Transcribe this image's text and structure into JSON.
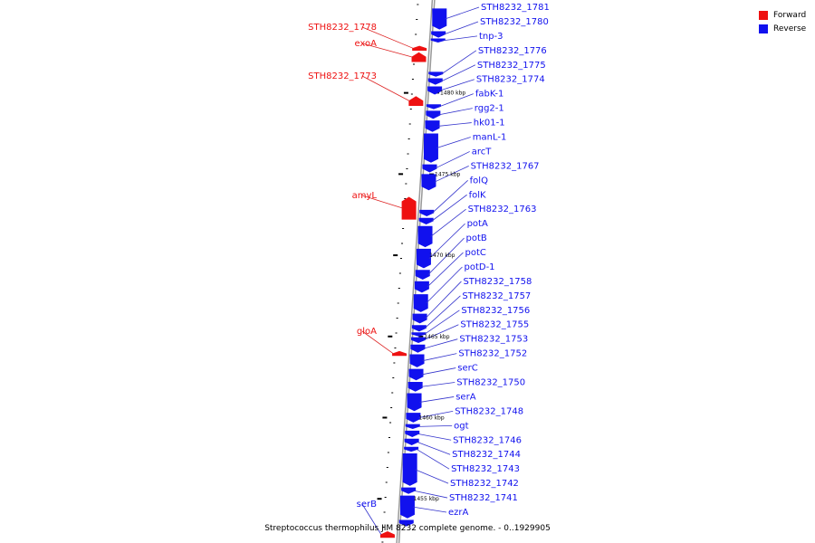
{
  "caption": "Streptococcus thermophilus JIM 8232 complete genome. - 0..1929905",
  "legend": [
    {
      "label": "Forward",
      "color": "#ee1111"
    },
    {
      "label": "Reverse",
      "color": "#1111ee"
    }
  ],
  "colors": {
    "forward": "#ee1111",
    "reverse": "#1111ee",
    "backbone": "#999999",
    "callout": "#3333cc",
    "callout_forward": "#dd2222"
  },
  "ruler": [
    {
      "label": "1480 kbp",
      "pos": 1480
    },
    {
      "label": "1475 kbp",
      "pos": 1475
    },
    {
      "label": "1470 kbp",
      "pos": 1470
    },
    {
      "label": "1465 kbp",
      "pos": 1465
    },
    {
      "label": "1460 kbp",
      "pos": 1460
    },
    {
      "label": "1455 kbp",
      "pos": 1455
    }
  ],
  "reverse_genes": [
    {
      "label": "STH8232_1781",
      "start": 1483.9,
      "end": 1485.2
    },
    {
      "label": "STH8232_1780",
      "start": 1483.4,
      "end": 1483.8
    },
    {
      "label": "tnp-3",
      "start": 1483.1,
      "end": 1483.35
    },
    {
      "label": "STH8232_1776",
      "start": 1481.0,
      "end": 1481.3
    },
    {
      "label": "STH8232_1775",
      "start": 1480.5,
      "end": 1480.9
    },
    {
      "label": "STH8232_1774",
      "start": 1479.9,
      "end": 1480.4
    },
    {
      "label": "fabK-1",
      "start": 1479.0,
      "end": 1479.3
    },
    {
      "label": "rgg2-1",
      "start": 1478.4,
      "end": 1478.9
    },
    {
      "label": "hk01-1",
      "start": 1477.6,
      "end": 1478.3
    },
    {
      "label": "manL-1",
      "start": 1475.7,
      "end": 1477.5
    },
    {
      "label": "arcT",
      "start": 1475.1,
      "end": 1475.6
    },
    {
      "label": "STH8232_1767",
      "start": 1474.0,
      "end": 1475.0
    },
    {
      "label": "folQ",
      "start": 1472.4,
      "end": 1472.8
    },
    {
      "label": "folK",
      "start": 1471.9,
      "end": 1472.3
    },
    {
      "label": "STH8232_1763",
      "start": 1470.5,
      "end": 1471.8
    },
    {
      "label": "potA",
      "start": 1469.2,
      "end": 1470.4
    },
    {
      "label": "potB",
      "start": 1468.5,
      "end": 1469.1
    },
    {
      "label": "potC",
      "start": 1467.7,
      "end": 1468.4
    },
    {
      "label": "potD-1",
      "start": 1466.5,
      "end": 1467.6
    },
    {
      "label": "STH8232_1758",
      "start": 1465.8,
      "end": 1466.4
    },
    {
      "label": "STH8232_1757",
      "start": 1465.3,
      "end": 1465.7
    },
    {
      "label": "STH8232_1756",
      "start": 1465.0,
      "end": 1465.25
    },
    {
      "label": "STH8232_1755",
      "start": 1464.6,
      "end": 1464.95
    },
    {
      "label": "STH8232_1753",
      "start": 1464.0,
      "end": 1464.5
    },
    {
      "label": "STH8232_1752",
      "start": 1463.1,
      "end": 1463.9
    },
    {
      "label": "serC",
      "start": 1462.3,
      "end": 1463.0
    },
    {
      "label": "STH8232_1750",
      "start": 1461.6,
      "end": 1462.2
    },
    {
      "label": "serA",
      "start": 1460.4,
      "end": 1461.5
    },
    {
      "label": "STH8232_1748",
      "start": 1459.7,
      "end": 1460.3
    },
    {
      "label": "ogt",
      "start": 1459.3,
      "end": 1459.6
    },
    {
      "label": "STH8232_1746",
      "start": 1458.8,
      "end": 1459.2
    },
    {
      "label": "STH8232_1744",
      "start": 1458.3,
      "end": 1458.7
    },
    {
      "label": "STH8232_1743",
      "start": 1457.9,
      "end": 1458.2
    },
    {
      "label": "STH8232_1742",
      "start": 1455.8,
      "end": 1457.8
    },
    {
      "label": "STH8232_1741",
      "start": 1455.3,
      "end": 1455.7
    },
    {
      "label": "ezrA",
      "start": 1453.8,
      "end": 1455.2
    },
    {
      "label": "",
      "start": 1453.3,
      "end": 1453.7
    }
  ],
  "forward_genes": [
    {
      "label": "STH8232_1778",
      "start": 1482.6,
      "end": 1482.9
    },
    {
      "label": "exoA",
      "start": 1481.9,
      "end": 1482.5
    },
    {
      "label": "STH8232_1773",
      "start": 1479.2,
      "end": 1479.8
    },
    {
      "label": "amyL",
      "start": 1472.2,
      "end": 1473.6
    },
    {
      "label": "gloA",
      "start": 1463.8,
      "end": 1464.1
    },
    {
      "label": "serB",
      "start": 1452.6,
      "end": 1453.0
    }
  ]
}
